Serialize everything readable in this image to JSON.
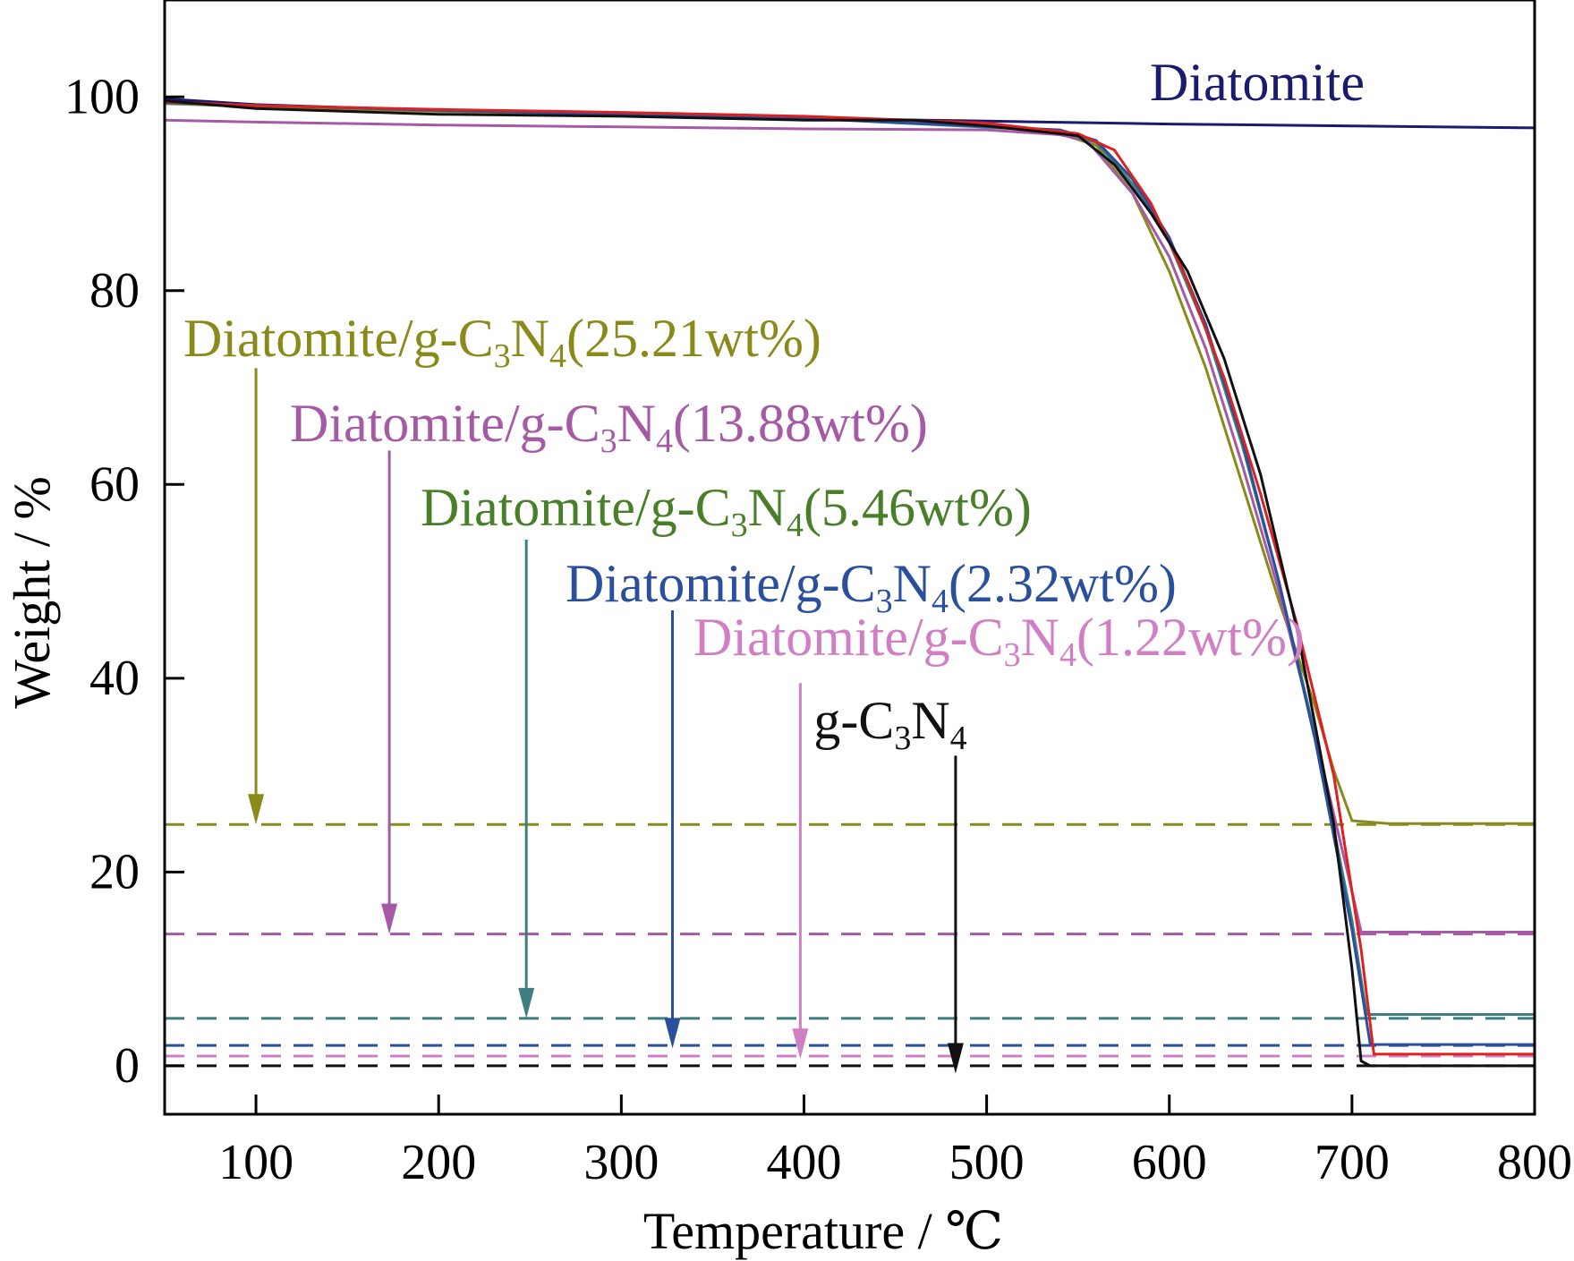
{
  "chart_data": {
    "type": "line",
    "xlabel": "Temperature / ℃",
    "ylabel": "Weight / %",
    "xlim": [
      50,
      800
    ],
    "ylim": [
      -5,
      110
    ],
    "xticks": [
      100,
      200,
      300,
      400,
      500,
      600,
      700,
      800
    ],
    "yticks": [
      0,
      20,
      40,
      60,
      80,
      100
    ],
    "grid": false,
    "series": [
      {
        "name": "Diatomite",
        "color": "#1a1a6e",
        "points": [
          [
            50,
            99.8
          ],
          [
            100,
            99.2
          ],
          [
            200,
            98.6
          ],
          [
            300,
            98.2
          ],
          [
            400,
            97.8
          ],
          [
            500,
            97.5
          ],
          [
            600,
            97.2
          ],
          [
            700,
            97.0
          ],
          [
            800,
            96.8
          ]
        ]
      },
      {
        "name": "Diatomite/g-C3N4(25.21wt%)",
        "color": "#8a8a1a",
        "points": [
          [
            50,
            99.3
          ],
          [
            100,
            99.0
          ],
          [
            200,
            98.5
          ],
          [
            300,
            98.2
          ],
          [
            400,
            97.8
          ],
          [
            500,
            97.2
          ],
          [
            540,
            96.2
          ],
          [
            560,
            95.0
          ],
          [
            580,
            90.0
          ],
          [
            600,
            82.0
          ],
          [
            620,
            72.0
          ],
          [
            640,
            60.0
          ],
          [
            660,
            48.0
          ],
          [
            680,
            37.0
          ],
          [
            690,
            30.5
          ],
          [
            700,
            25.3
          ],
          [
            720,
            25.0
          ],
          [
            800,
            25.0
          ]
        ]
      },
      {
        "name": "Diatomite/g-C3N4(13.88wt%)",
        "color": "#a65aa6",
        "points": [
          [
            50,
            97.6
          ],
          [
            100,
            97.4
          ],
          [
            200,
            97.1
          ],
          [
            300,
            96.9
          ],
          [
            400,
            96.7
          ],
          [
            500,
            96.6
          ],
          [
            540,
            96.1
          ],
          [
            555,
            95.5
          ],
          [
            580,
            90.0
          ],
          [
            600,
            83.5
          ],
          [
            620,
            74.0
          ],
          [
            640,
            62.0
          ],
          [
            660,
            49.0
          ],
          [
            680,
            34.0
          ],
          [
            700,
            18.0
          ],
          [
            705,
            13.8
          ],
          [
            800,
            13.8
          ]
        ]
      },
      {
        "name": "Diatomite/g-C3N4(5.46wt%)",
        "color": "#3d7f7f",
        "points": [
          [
            50,
            99.4
          ],
          [
            200,
            98.6
          ],
          [
            400,
            97.8
          ],
          [
            540,
            96.5
          ],
          [
            560,
            95.3
          ],
          [
            580,
            91.0
          ],
          [
            600,
            85.0
          ],
          [
            620,
            76.0
          ],
          [
            640,
            64.0
          ],
          [
            660,
            50.0
          ],
          [
            680,
            34.0
          ],
          [
            700,
            15.0
          ],
          [
            708,
            5.3
          ],
          [
            800,
            5.3
          ]
        ]
      },
      {
        "name": "Diatomite/g-C3N4(2.32wt%)",
        "color": "#2a4f9c",
        "points": [
          [
            50,
            99.4
          ],
          [
            200,
            98.6
          ],
          [
            400,
            97.8
          ],
          [
            540,
            96.6
          ],
          [
            560,
            95.5
          ],
          [
            580,
            91.5
          ],
          [
            600,
            85.5
          ],
          [
            620,
            76.5
          ],
          [
            640,
            64.5
          ],
          [
            660,
            50.0
          ],
          [
            680,
            33.5
          ],
          [
            700,
            14.0
          ],
          [
            710,
            2.2
          ],
          [
            800,
            2.2
          ]
        ]
      },
      {
        "name": "Diatomite/g-C3N4(1.22wt%)",
        "color": "#e02020",
        "points": [
          [
            50,
            99.5
          ],
          [
            100,
            99.1
          ],
          [
            200,
            98.7
          ],
          [
            300,
            98.4
          ],
          [
            400,
            98.0
          ],
          [
            500,
            97.3
          ],
          [
            550,
            96.2
          ],
          [
            570,
            94.5
          ],
          [
            590,
            89.0
          ],
          [
            610,
            81.0
          ],
          [
            630,
            71.0
          ],
          [
            650,
            59.0
          ],
          [
            670,
            45.5
          ],
          [
            690,
            30.0
          ],
          [
            705,
            12.0
          ],
          [
            712,
            1.2
          ],
          [
            800,
            1.2
          ]
        ]
      },
      {
        "name": "g-C3N4",
        "color": "#111111",
        "points": [
          [
            50,
            99.6
          ],
          [
            100,
            98.8
          ],
          [
            200,
            98.2
          ],
          [
            300,
            98.0
          ],
          [
            400,
            97.6
          ],
          [
            460,
            97.6
          ],
          [
            500,
            97.0
          ],
          [
            550,
            96.0
          ],
          [
            570,
            93.0
          ],
          [
            590,
            88.0
          ],
          [
            610,
            82.0
          ],
          [
            630,
            73.0
          ],
          [
            650,
            61.0
          ],
          [
            670,
            45.0
          ],
          [
            690,
            25.0
          ],
          [
            700,
            10.0
          ],
          [
            705,
            0.5
          ],
          [
            710,
            0.0
          ],
          [
            800,
            0.0
          ]
        ]
      }
    ],
    "reference_lines": [
      {
        "y": 24.9,
        "color": "#8a8a1a"
      },
      {
        "y": 13.6,
        "color": "#a65aa6"
      },
      {
        "y": 4.9,
        "color": "#3d7f7f"
      },
      {
        "y": 2.1,
        "color": "#2a4f9c"
      },
      {
        "y": 1.0,
        "color": "#d07fc4"
      },
      {
        "y": 0.0,
        "color": "#111111"
      }
    ],
    "annotations": [
      {
        "id": "diatomite",
        "text": "Diatomite",
        "color": "#1a1a6e"
      },
      {
        "id": "wt25",
        "prefix": "Diatomite/g-C",
        "sub1": "3",
        "mid": "N",
        "sub2": "4",
        "suffix": "(25.21wt%)",
        "color": "#8a8a1a",
        "arrow_x": 100,
        "arrow_top": 72,
        "arrow_bottom": 24.9
      },
      {
        "id": "wt13",
        "prefix": "Diatomite/g-C",
        "sub1": "3",
        "mid": "N",
        "sub2": "4",
        "suffix": "(13.88wt%)",
        "color": "#a65aa6",
        "arrow_x": 173,
        "arrow_top": 63.5,
        "arrow_bottom": 13.6
      },
      {
        "id": "wt5",
        "prefix": "Diatomite/g-C",
        "sub1": "3",
        "mid": "N",
        "sub2": "4",
        "suffix": "(5.46wt%)",
        "color": "#4a7f2a",
        "arrow_color": "#3d7f7f",
        "arrow_x": 248,
        "arrow_top": 54.3,
        "arrow_bottom": 4.9
      },
      {
        "id": "wt2",
        "prefix": "Diatomite/g-C",
        "sub1": "3",
        "mid": "N",
        "sub2": "4",
        "suffix": "(2.32wt%)",
        "color": "#2a4f9c",
        "arrow_x": 328,
        "arrow_top": 47,
        "arrow_bottom": 1.8
      },
      {
        "id": "wt1",
        "prefix": "Diatomite/g-C",
        "sub1": "3",
        "mid": "N",
        "sub2": "4",
        "suffix": "(1.22wt%)",
        "color": "#d07fc4",
        "arrow_x": 398,
        "arrow_top": 39.5,
        "arrow_bottom": 0.7
      },
      {
        "id": "gcn",
        "prefix": "g-C",
        "sub1": "3",
        "mid": "N",
        "sub2": "4",
        "suffix": "",
        "color": "#111111",
        "arrow_x": 483,
        "arrow_top": 32,
        "arrow_bottom": -0.8
      }
    ]
  }
}
